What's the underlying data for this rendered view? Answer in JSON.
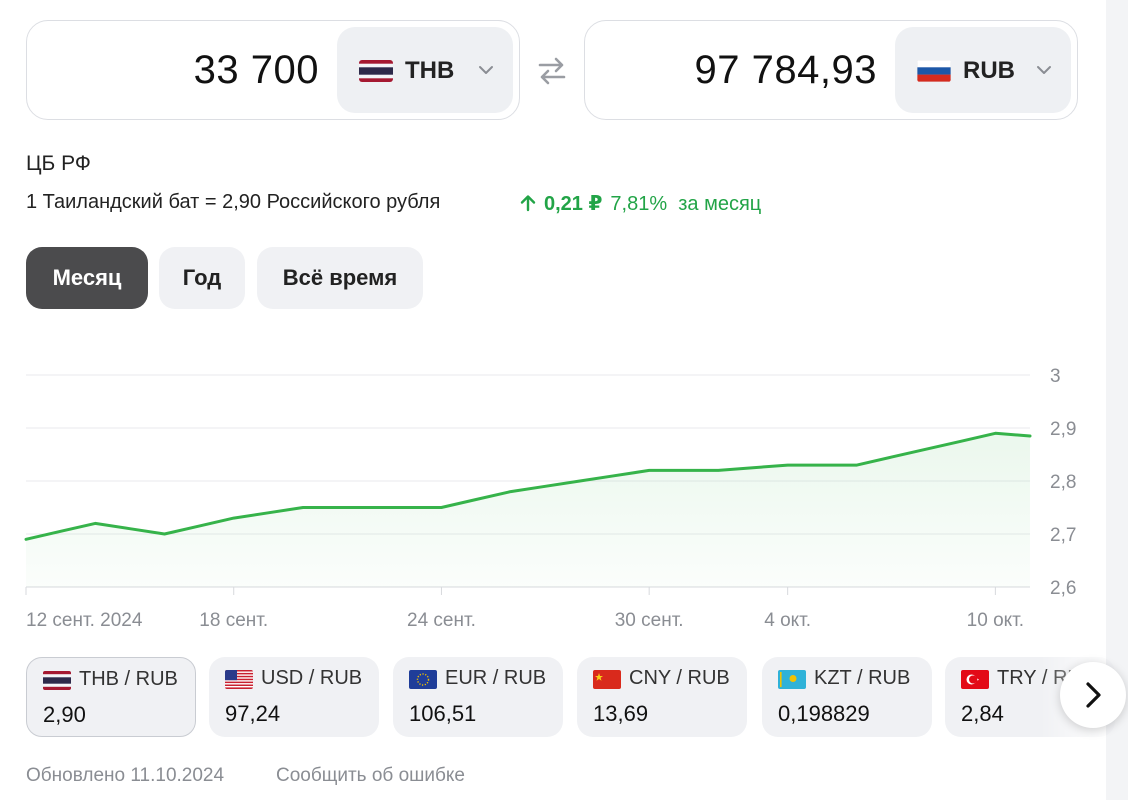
{
  "converter": {
    "from": {
      "amount": "33 700",
      "currency": "THB",
      "flag_icon": "thailand-flag-icon"
    },
    "to": {
      "amount": "97 784,93",
      "currency": "RUB",
      "flag_icon": "russia-flag-icon"
    },
    "swap_icon": "swap-arrows-icon"
  },
  "rate_info": {
    "source": "ЦБ РФ",
    "rate_text": "1 Таиландский бат = 2,90 Российского рубля",
    "change_abs": "0,21 ₽",
    "change_pct": "7,81%",
    "change_period": "за месяц",
    "change_color": "#22a447"
  },
  "period_tabs": [
    {
      "label": "Месяц",
      "active": true
    },
    {
      "label": "Год",
      "active": false
    },
    {
      "label": "Всё время",
      "active": false
    }
  ],
  "chart_data": {
    "type": "area",
    "title": "",
    "xlabel": "",
    "ylabel": "",
    "line_color": "#36b34a",
    "ylim": [
      2.6,
      3.0
    ],
    "yticks": [
      "3",
      "2,9",
      "2,8",
      "2,7",
      "2,6"
    ],
    "xtick_labels": [
      "12 сент. 2024",
      "18 сент.",
      "24 сент.",
      "30 сент.",
      "4 окт.",
      "10 окт."
    ],
    "series": [
      {
        "x": [
          "2024-09-12",
          "2024-09-13",
          "2024-09-14",
          "2024-09-15",
          "2024-09-16",
          "2024-09-17",
          "2024-09-18",
          "2024-09-19",
          "2024-09-20",
          "2024-09-21",
          "2024-09-22",
          "2024-09-23",
          "2024-09-24",
          "2024-09-25",
          "2024-09-26",
          "2024-09-27",
          "2024-09-28",
          "2024-09-29",
          "2024-09-30",
          "2024-10-01",
          "2024-10-02",
          "2024-10-03",
          "2024-10-04",
          "2024-10-05",
          "2024-10-06",
          "2024-10-07",
          "2024-10-08",
          "2024-10-09",
          "2024-10-10",
          "2024-10-11"
        ],
        "values": [
          2.69,
          2.705,
          2.72,
          2.71,
          2.7,
          2.715,
          2.73,
          2.74,
          2.75,
          2.75,
          2.75,
          2.75,
          2.75,
          2.765,
          2.78,
          2.79,
          2.8,
          2.81,
          2.82,
          2.82,
          2.82,
          2.825,
          2.83,
          2.83,
          2.83,
          2.845,
          2.86,
          2.875,
          2.89,
          2.885
        ]
      }
    ]
  },
  "pairs": [
    {
      "label": "THB / RUB",
      "value": "2,90",
      "flag_icon": "thailand-flag-icon",
      "active": true
    },
    {
      "label": "USD / RUB",
      "value": "97,24",
      "flag_icon": "usa-flag-icon",
      "active": false
    },
    {
      "label": "EUR / RUB",
      "value": "106,51",
      "flag_icon": "eu-flag-icon",
      "active": false
    },
    {
      "label": "CNY / RUB",
      "value": "13,69",
      "flag_icon": "china-flag-icon",
      "active": false
    },
    {
      "label": "KZT / RUB",
      "value": "0,198829",
      "flag_icon": "kazakhstan-flag-icon",
      "active": false
    },
    {
      "label": "TRY / RUB",
      "value": "2,84",
      "flag_icon": "turkey-flag-icon",
      "active": false
    }
  ],
  "footer": {
    "updated": "Обновлено 11.10.2024",
    "report_link": "Сообщить об ошибке"
  }
}
